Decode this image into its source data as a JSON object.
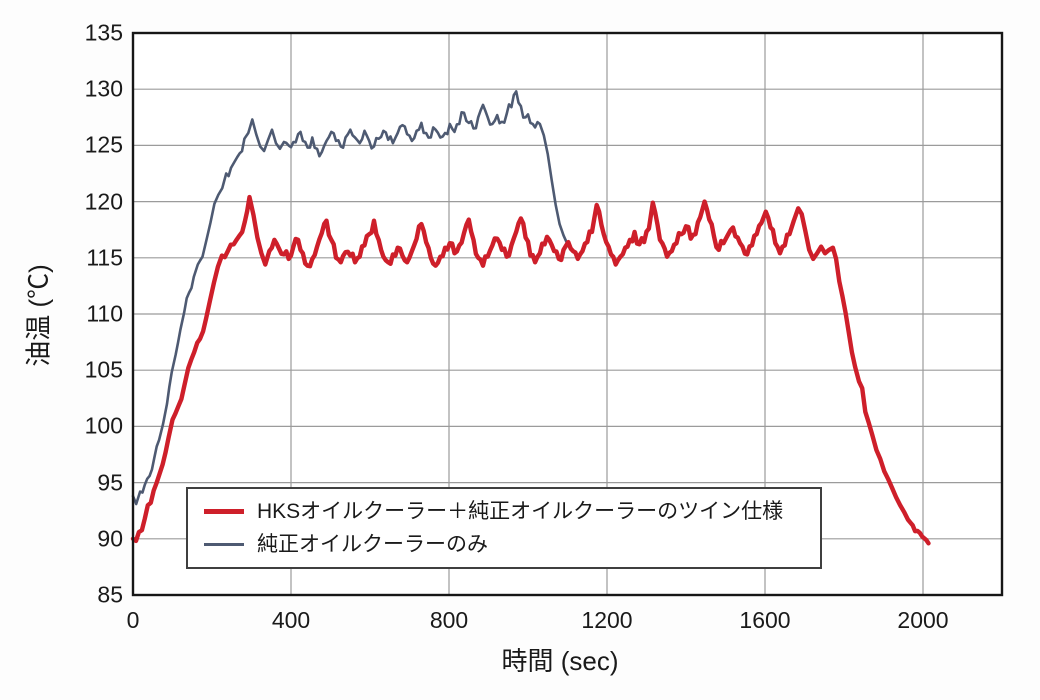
{
  "chart_data": {
    "type": "line",
    "title": "",
    "xlabel": "時間 (sec)",
    "ylabel": "油温 (℃)",
    "xlim": [
      0,
      2200
    ],
    "ylim": [
      85,
      135
    ],
    "x_ticks": [
      0,
      400,
      800,
      1200,
      1600,
      2000
    ],
    "y_ticks": [
      85,
      90,
      95,
      100,
      105,
      110,
      115,
      120,
      125,
      130,
      135
    ],
    "x_gridlines": [
      400,
      800,
      1200,
      1600,
      2000
    ],
    "y_gridlines": [
      90,
      95,
      100,
      105,
      110,
      115,
      120,
      125,
      130
    ],
    "grid": true,
    "grid_color": "#9b9b9b",
    "border_color": "#161616",
    "legend_position": "inside-lower-center",
    "series": [
      {
        "name": "HKSオイルクーラー＋純正オイルクーラーのツイン仕様",
        "color": "#ce1f2a",
        "line_width": 4.4,
        "noise": 0.5,
        "points": [
          [
            0,
            90
          ],
          [
            15,
            90.6
          ],
          [
            30,
            91.8
          ],
          [
            45,
            93.2
          ],
          [
            60,
            95
          ],
          [
            75,
            96.6
          ],
          [
            90,
            99
          ],
          [
            100,
            100.6
          ],
          [
            115,
            101.8
          ],
          [
            130,
            103.6
          ],
          [
            140,
            105.2
          ],
          [
            155,
            106.6
          ],
          [
            170,
            107.8
          ],
          [
            185,
            109.6
          ],
          [
            195,
            111.2
          ],
          [
            205,
            112.8
          ],
          [
            215,
            114.2
          ],
          [
            225,
            115.2
          ],
          [
            240,
            115.6
          ],
          [
            255,
            116.2
          ],
          [
            270,
            117
          ],
          [
            283,
            118.2
          ],
          [
            295,
            120.4
          ],
          [
            305,
            118.8
          ],
          [
            315,
            116.8
          ],
          [
            325,
            115.4
          ],
          [
            335,
            114.4
          ],
          [
            345,
            115.6
          ],
          [
            358,
            116.6
          ],
          [
            370,
            115.8
          ],
          [
            382,
            115.3
          ],
          [
            394,
            114.9
          ],
          [
            406,
            116
          ],
          [
            418,
            116.6
          ],
          [
            430,
            115.4
          ],
          [
            442,
            114.3
          ],
          [
            454,
            114.9
          ],
          [
            466,
            116
          ],
          [
            478,
            117.2
          ],
          [
            490,
            118.3
          ],
          [
            502,
            116.6
          ],
          [
            514,
            115
          ],
          [
            526,
            114.6
          ],
          [
            538,
            115.5
          ],
          [
            550,
            115.2
          ],
          [
            562,
            114.6
          ],
          [
            574,
            115.1
          ],
          [
            586,
            116.1
          ],
          [
            598,
            117.1
          ],
          [
            610,
            118.3
          ],
          [
            622,
            116.6
          ],
          [
            634,
            115.1
          ],
          [
            646,
            114.6
          ],
          [
            658,
            115.3
          ],
          [
            670,
            115.9
          ],
          [
            682,
            115.2
          ],
          [
            694,
            114.6
          ],
          [
            706,
            115.6
          ],
          [
            718,
            116.7
          ],
          [
            730,
            118
          ],
          [
            742,
            116.4
          ],
          [
            754,
            115
          ],
          [
            766,
            114.3
          ],
          [
            778,
            115.1
          ],
          [
            790,
            115.9
          ],
          [
            802,
            116.3
          ],
          [
            814,
            115.4
          ],
          [
            826,
            116.1
          ],
          [
            838,
            117.2
          ],
          [
            850,
            118.4
          ],
          [
            862,
            116.6
          ],
          [
            874,
            115
          ],
          [
            886,
            114.3
          ],
          [
            898,
            115.1
          ],
          [
            910,
            116.1
          ],
          [
            922,
            116.7
          ],
          [
            934,
            115.7
          ],
          [
            946,
            115.1
          ],
          [
            958,
            116.1
          ],
          [
            970,
            117.3
          ],
          [
            982,
            118.5
          ],
          [
            994,
            116.8
          ],
          [
            1006,
            115.2
          ],
          [
            1018,
            114.6
          ],
          [
            1030,
            115.4
          ],
          [
            1042,
            116.2
          ],
          [
            1054,
            116.6
          ],
          [
            1066,
            115.6
          ],
          [
            1078,
            114.9
          ],
          [
            1090,
            115.7
          ],
          [
            1102,
            116.4
          ],
          [
            1114,
            115.6
          ],
          [
            1126,
            114.9
          ],
          [
            1138,
            115.6
          ],
          [
            1150,
            116.4
          ],
          [
            1162,
            117.3
          ],
          [
            1174,
            119.7
          ],
          [
            1186,
            117.9
          ],
          [
            1198,
            116.4
          ],
          [
            1210,
            115.3
          ],
          [
            1222,
            114.4
          ],
          [
            1234,
            115.1
          ],
          [
            1246,
            115.9
          ],
          [
            1258,
            116.6
          ],
          [
            1270,
            117.3
          ],
          [
            1282,
            116.2
          ],
          [
            1294,
            116.4
          ],
          [
            1306,
            117.6
          ],
          [
            1316,
            119.9
          ],
          [
            1328,
            117.9
          ],
          [
            1340,
            116.3
          ],
          [
            1352,
            115.1
          ],
          [
            1364,
            115.6
          ],
          [
            1376,
            116.3
          ],
          [
            1388,
            117.1
          ],
          [
            1400,
            117.8
          ],
          [
            1412,
            116.7
          ],
          [
            1424,
            117.1
          ],
          [
            1436,
            118.6
          ],
          [
            1447,
            120
          ],
          [
            1459,
            118.4
          ],
          [
            1471,
            116.9
          ],
          [
            1483,
            115.7
          ],
          [
            1495,
            116.3
          ],
          [
            1507,
            117.1
          ],
          [
            1519,
            117.7
          ],
          [
            1531,
            116.8
          ],
          [
            1543,
            116
          ],
          [
            1555,
            115.3
          ],
          [
            1567,
            116.1
          ],
          [
            1579,
            117.1
          ],
          [
            1591,
            118.1
          ],
          [
            1602,
            119.1
          ],
          [
            1614,
            117.7
          ],
          [
            1626,
            116.3
          ],
          [
            1638,
            115.4
          ],
          [
            1650,
            116.1
          ],
          [
            1662,
            117.1
          ],
          [
            1673,
            118.3
          ],
          [
            1684,
            119.4
          ],
          [
            1693,
            118.9
          ],
          [
            1702,
            117.4
          ],
          [
            1712,
            115.7
          ],
          [
            1722,
            114.9
          ],
          [
            1732,
            115.4
          ],
          [
            1742,
            116
          ],
          [
            1752,
            115.4
          ],
          [
            1762,
            115.7
          ],
          [
            1772,
            115.9
          ],
          [
            1780,
            114.9
          ],
          [
            1788,
            112.9
          ],
          [
            1796,
            111.6
          ],
          [
            1804,
            110.1
          ],
          [
            1812,
            108.4
          ],
          [
            1820,
            106.6
          ],
          [
            1828,
            105.3
          ],
          [
            1838,
            104
          ],
          [
            1846,
            103.4
          ],
          [
            1854,
            101.3
          ],
          [
            1862,
            100.4
          ],
          [
            1872,
            99.2
          ],
          [
            1882,
            97.9
          ],
          [
            1892,
            97.1
          ],
          [
            1902,
            96
          ],
          [
            1912,
            95.3
          ],
          [
            1922,
            94.5
          ],
          [
            1932,
            93.7
          ],
          [
            1942,
            93
          ],
          [
            1952,
            92.4
          ],
          [
            1962,
            91.7
          ],
          [
            1974,
            91.2
          ],
          [
            1986,
            90.7
          ],
          [
            1998,
            90.2
          ],
          [
            2008,
            89.9
          ],
          [
            2014,
            89.6
          ]
        ]
      },
      {
        "name": "純正オイルクーラーのみ",
        "color": "#4e5a72",
        "line_width": 2.6,
        "noise": 0.55,
        "points": [
          [
            0,
            93.8
          ],
          [
            8,
            93.1
          ],
          [
            18,
            94.2
          ],
          [
            30,
            94.8
          ],
          [
            42,
            95.6
          ],
          [
            54,
            97.2
          ],
          [
            66,
            98.8
          ],
          [
            76,
            100.2
          ],
          [
            86,
            102
          ],
          [
            98,
            104.8
          ],
          [
            108,
            106.4
          ],
          [
            120,
            108.6
          ],
          [
            130,
            110.2
          ],
          [
            142,
            111.9
          ],
          [
            154,
            113.3
          ],
          [
            164,
            114.4
          ],
          [
            176,
            115.1
          ],
          [
            186,
            116.6
          ],
          [
            196,
            118.1
          ],
          [
            206,
            119.8
          ],
          [
            216,
            120.6
          ],
          [
            226,
            121.2
          ],
          [
            236,
            122.5
          ],
          [
            248,
            123
          ],
          [
            258,
            123.6
          ],
          [
            270,
            124.3
          ],
          [
            282,
            125.6
          ],
          [
            292,
            126.1
          ],
          [
            302,
            127.3
          ],
          [
            312,
            126
          ],
          [
            322,
            124.9
          ],
          [
            332,
            124.5
          ],
          [
            342,
            125.5
          ],
          [
            352,
            126.4
          ],
          [
            362,
            125.2
          ],
          [
            372,
            124.7
          ],
          [
            382,
            125.3
          ],
          [
            394,
            125
          ],
          [
            406,
            125.3
          ],
          [
            418,
            126
          ],
          [
            430,
            125.4
          ],
          [
            442,
            124.8
          ],
          [
            454,
            125.7
          ],
          [
            466,
            124.7
          ],
          [
            478,
            124.4
          ],
          [
            490,
            125.4
          ],
          [
            502,
            126.2
          ],
          [
            514,
            125.4
          ],
          [
            526,
            124.9
          ],
          [
            538,
            125.7
          ],
          [
            550,
            126.4
          ],
          [
            562,
            125.7
          ],
          [
            574,
            125.2
          ],
          [
            586,
            126.3
          ],
          [
            598,
            125.4
          ],
          [
            610,
            124.9
          ],
          [
            622,
            125.6
          ],
          [
            634,
            126.3
          ],
          [
            646,
            125.5
          ],
          [
            658,
            125.2
          ],
          [
            670,
            126.1
          ],
          [
            682,
            126.8
          ],
          [
            694,
            126
          ],
          [
            706,
            125.4
          ],
          [
            718,
            126.3
          ],
          [
            730,
            127
          ],
          [
            742,
            126.1
          ],
          [
            754,
            125.7
          ],
          [
            766,
            126.4
          ],
          [
            778,
            125.7
          ],
          [
            790,
            126.1
          ],
          [
            802,
            126.9
          ],
          [
            814,
            126.2
          ],
          [
            826,
            126.9
          ],
          [
            838,
            127.9
          ],
          [
            850,
            127
          ],
          [
            862,
            126.5
          ],
          [
            874,
            127.5
          ],
          [
            886,
            128.6
          ],
          [
            898,
            127.5
          ],
          [
            910,
            126.9
          ],
          [
            922,
            127.7
          ],
          [
            934,
            127.1
          ],
          [
            946,
            127.8
          ],
          [
            958,
            128.4
          ],
          [
            970,
            129.8
          ],
          [
            982,
            128.5
          ],
          [
            994,
            127.5
          ],
          [
            1006,
            127
          ],
          [
            1018,
            126.6
          ],
          [
            1030,
            126.9
          ],
          [
            1040,
            125.9
          ],
          [
            1050,
            124.2
          ],
          [
            1060,
            121.9
          ],
          [
            1070,
            119.7
          ],
          [
            1080,
            118
          ],
          [
            1090,
            117
          ],
          [
            1100,
            116.2
          ],
          [
            1108,
            115.7
          ]
        ]
      }
    ]
  },
  "layout_text": {
    "x_tick_labels": [
      "0",
      "400",
      "800",
      "1200",
      "1600",
      "2000"
    ],
    "y_tick_labels": [
      "85",
      "90",
      "95",
      "100",
      "105",
      "110",
      "115",
      "120",
      "125",
      "130",
      "135"
    ]
  }
}
